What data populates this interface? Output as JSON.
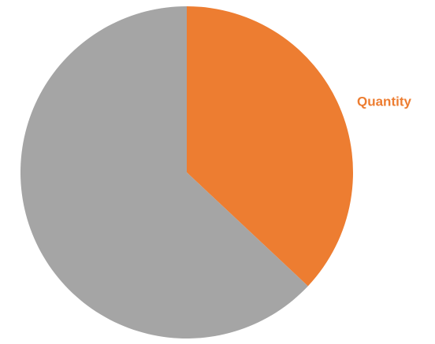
{
  "chart_data": {
    "type": "pie",
    "categories": [
      "Quantity",
      null
    ],
    "values": [
      37,
      63
    ],
    "colors": [
      "#ed7d31",
      "#a5a5a5"
    ]
  }
}
